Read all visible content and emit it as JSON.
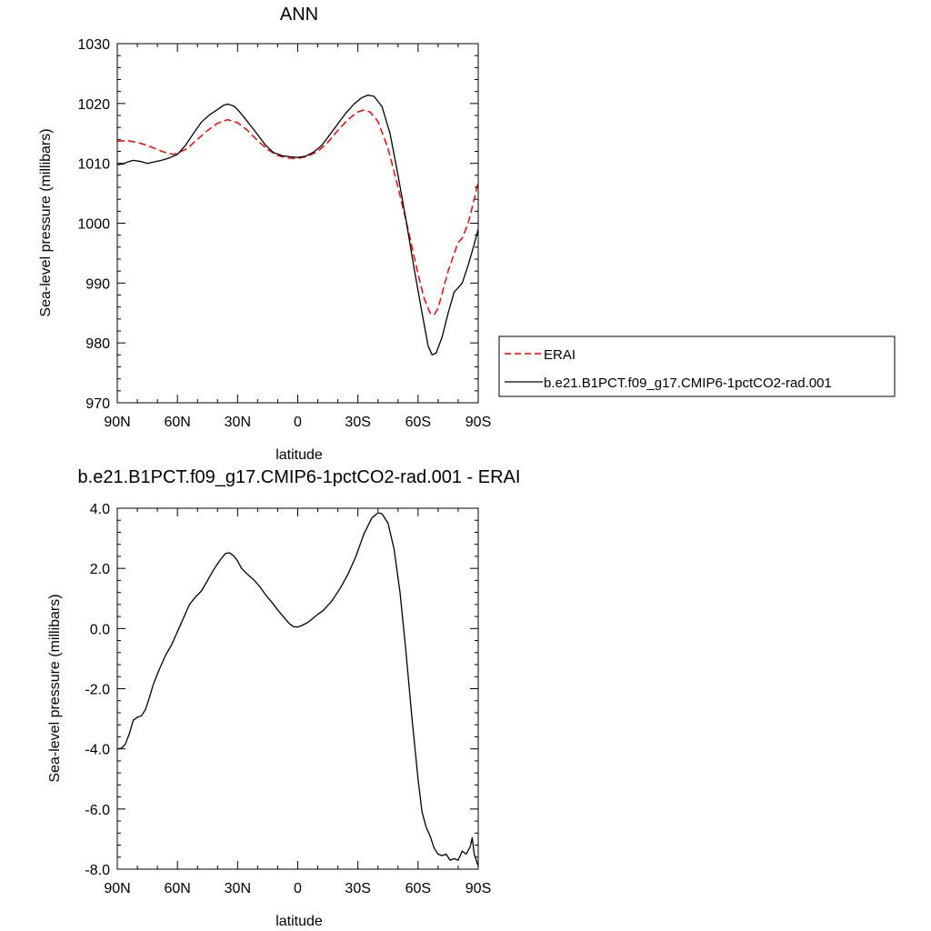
{
  "chart_data": [
    {
      "type": "line",
      "title": "ANN",
      "xlabel": "latitude",
      "ylabel": "Sea-level pressure (millibars)",
      "xlim": [
        90,
        -90
      ],
      "ylim": [
        970,
        1030
      ],
      "x_ticks": [
        90,
        60,
        30,
        0,
        -30,
        -60,
        -90
      ],
      "x_tick_labels": [
        "90N",
        "60N",
        "30N",
        "0",
        "30S",
        "60S",
        "90S"
      ],
      "y_ticks": [
        970,
        980,
        990,
        1000,
        1010,
        1020,
        1030
      ],
      "y_tick_labels": [
        "970",
        "980",
        "990",
        "1000",
        "1010",
        "1020",
        "1030"
      ],
      "legend_position": "right",
      "series": [
        {
          "name": "ERAI",
          "color": "#ff0000",
          "dash": "dashed",
          "points": [
            [
              90,
              1013.7
            ],
            [
              85,
              1013.8
            ],
            [
              80,
              1013.5
            ],
            [
              75,
              1013.0
            ],
            [
              70,
              1012.3
            ],
            [
              65,
              1011.7
            ],
            [
              62,
              1011.5
            ],
            [
              60,
              1011.7
            ],
            [
              55,
              1012.5
            ],
            [
              50,
              1014.0
            ],
            [
              45,
              1015.5
            ],
            [
              40,
              1016.7
            ],
            [
              35,
              1017.3
            ],
            [
              30,
              1016.8
            ],
            [
              25,
              1015.5
            ],
            [
              20,
              1013.8
            ],
            [
              15,
              1012.3
            ],
            [
              10,
              1011.3
            ],
            [
              5,
              1010.9
            ],
            [
              0,
              1010.8
            ],
            [
              -5,
              1011.2
            ],
            [
              -10,
              1012.0
            ],
            [
              -15,
              1013.5
            ],
            [
              -20,
              1015.5
            ],
            [
              -25,
              1017.3
            ],
            [
              -30,
              1018.6
            ],
            [
              -33,
              1018.9
            ],
            [
              -36,
              1018.6
            ],
            [
              -40,
              1017.0
            ],
            [
              -45,
              1012.5
            ],
            [
              -50,
              1006.0
            ],
            [
              -55,
              999.0
            ],
            [
              -60,
              991.5
            ],
            [
              -63,
              987.5
            ],
            [
              -66,
              985.0
            ],
            [
              -68,
              984.7
            ],
            [
              -70,
              985.8
            ],
            [
              -75,
              992.0
            ],
            [
              -80,
              996.8
            ],
            [
              -82,
              997.5
            ],
            [
              -85,
              1000.0
            ],
            [
              -88,
              1004.0
            ],
            [
              -90,
              1007.0
            ]
          ]
        },
        {
          "name": "b.e21.B1PCT.f09_g17.CMIP6-1pctCO2-rad.001",
          "color": "#000000",
          "dash": "solid",
          "points": [
            [
              90,
              1009.8
            ],
            [
              87,
              1009.9
            ],
            [
              85,
              1010.2
            ],
            [
              82,
              1010.5
            ],
            [
              78,
              1010.3
            ],
            [
              75,
              1010.0
            ],
            [
              72,
              1010.2
            ],
            [
              68,
              1010.5
            ],
            [
              64,
              1010.9
            ],
            [
              60,
              1011.5
            ],
            [
              56,
              1013.0
            ],
            [
              52,
              1015.0
            ],
            [
              48,
              1016.9
            ],
            [
              44,
              1018.1
            ],
            [
              40,
              1019.0
            ],
            [
              37,
              1019.7
            ],
            [
              35,
              1019.9
            ],
            [
              32,
              1019.6
            ],
            [
              30,
              1019.0
            ],
            [
              27,
              1017.8
            ],
            [
              24,
              1016.5
            ],
            [
              20,
              1014.8
            ],
            [
              16,
              1013.0
            ],
            [
              12,
              1011.8
            ],
            [
              8,
              1011.3
            ],
            [
              4,
              1011.1
            ],
            [
              0,
              1011.0
            ],
            [
              -4,
              1011.2
            ],
            [
              -8,
              1011.9
            ],
            [
              -12,
              1013.0
            ],
            [
              -16,
              1014.8
            ],
            [
              -20,
              1016.6
            ],
            [
              -24,
              1018.4
            ],
            [
              -28,
              1019.9
            ],
            [
              -32,
              1021.0
            ],
            [
              -35,
              1021.4
            ],
            [
              -38,
              1021.2
            ],
            [
              -42,
              1019.5
            ],
            [
              -46,
              1015.0
            ],
            [
              -50,
              1008.0
            ],
            [
              -54,
              1000.5
            ],
            [
              -58,
              992.5
            ],
            [
              -62,
              985.0
            ],
            [
              -65,
              979.5
            ],
            [
              -67,
              978.0
            ],
            [
              -69,
              978.3
            ],
            [
              -72,
              981.0
            ],
            [
              -75,
              985.0
            ],
            [
              -78,
              988.5
            ],
            [
              -80,
              989.2
            ],
            [
              -82,
              990.0
            ],
            [
              -85,
              993.0
            ],
            [
              -88,
              996.5
            ],
            [
              -90,
              999.0
            ]
          ]
        }
      ]
    },
    {
      "type": "line",
      "title": "b.e21.B1PCT.f09_g17.CMIP6-1pctCO2-rad.001 - ERAI",
      "xlabel": "latitude",
      "ylabel": "Sea-level pressure (millibars)",
      "xlim": [
        90,
        -90
      ],
      "ylim": [
        -8,
        4
      ],
      "x_ticks": [
        90,
        60,
        30,
        0,
        -30,
        -60,
        -90
      ],
      "x_tick_labels": [
        "90N",
        "60N",
        "30N",
        "0",
        "30S",
        "60S",
        "90S"
      ],
      "y_ticks": [
        -8,
        -6,
        -4,
        -2,
        0,
        2,
        4
      ],
      "y_tick_labels": [
        "-8.0",
        "-6.0",
        "-4.0",
        "-2.0",
        "0.0",
        "2.0",
        "4.0"
      ],
      "series": [
        {
          "color": "#000000",
          "dash": "solid",
          "points": [
            [
              90,
              -4.0
            ],
            [
              88,
              -3.98
            ],
            [
              86,
              -3.85
            ],
            [
              84,
              -3.5
            ],
            [
              82,
              -3.05
            ],
            [
              80,
              -2.95
            ],
            [
              78,
              -2.9
            ],
            [
              76,
              -2.7
            ],
            [
              74,
              -2.3
            ],
            [
              72,
              -1.85
            ],
            [
              69,
              -1.35
            ],
            [
              66,
              -0.9
            ],
            [
              63,
              -0.55
            ],
            [
              60,
              -0.1
            ],
            [
              57,
              0.35
            ],
            [
              54,
              0.8
            ],
            [
              51,
              1.05
            ],
            [
              48,
              1.25
            ],
            [
              45,
              1.6
            ],
            [
              42,
              1.95
            ],
            [
              39,
              2.25
            ],
            [
              36,
              2.5
            ],
            [
              34,
              2.52
            ],
            [
              32,
              2.42
            ],
            [
              30,
              2.25
            ],
            [
              28,
              2.0
            ],
            [
              25,
              1.8
            ],
            [
              22,
              1.62
            ],
            [
              19,
              1.4
            ],
            [
              16,
              1.12
            ],
            [
              13,
              0.88
            ],
            [
              10,
              0.62
            ],
            [
              7,
              0.38
            ],
            [
              4,
              0.15
            ],
            [
              2,
              0.06
            ],
            [
              0,
              0.05
            ],
            [
              -2,
              0.1
            ],
            [
              -5,
              0.2
            ],
            [
              -9,
              0.42
            ],
            [
              -13,
              0.62
            ],
            [
              -17,
              0.92
            ],
            [
              -21,
              1.32
            ],
            [
              -25,
              1.8
            ],
            [
              -29,
              2.4
            ],
            [
              -33,
              3.15
            ],
            [
              -37,
              3.68
            ],
            [
              -40,
              3.85
            ],
            [
              -42,
              3.82
            ],
            [
              -45,
              3.5
            ],
            [
              -48,
              2.65
            ],
            [
              -51,
              1.2
            ],
            [
              -54,
              -0.8
            ],
            [
              -57,
              -3.0
            ],
            [
              -60,
              -5.0
            ],
            [
              -62,
              -6.1
            ],
            [
              -64,
              -6.6
            ],
            [
              -66,
              -6.9
            ],
            [
              -68,
              -7.3
            ],
            [
              -70,
              -7.5
            ],
            [
              -72,
              -7.55
            ],
            [
              -74,
              -7.5
            ],
            [
              -76,
              -7.7
            ],
            [
              -78,
              -7.65
            ],
            [
              -80,
              -7.7
            ],
            [
              -82,
              -7.4
            ],
            [
              -84,
              -7.5
            ],
            [
              -86,
              -7.25
            ],
            [
              -87,
              -6.95
            ],
            [
              -88,
              -7.5
            ],
            [
              -90,
              -7.9
            ]
          ]
        }
      ]
    }
  ]
}
